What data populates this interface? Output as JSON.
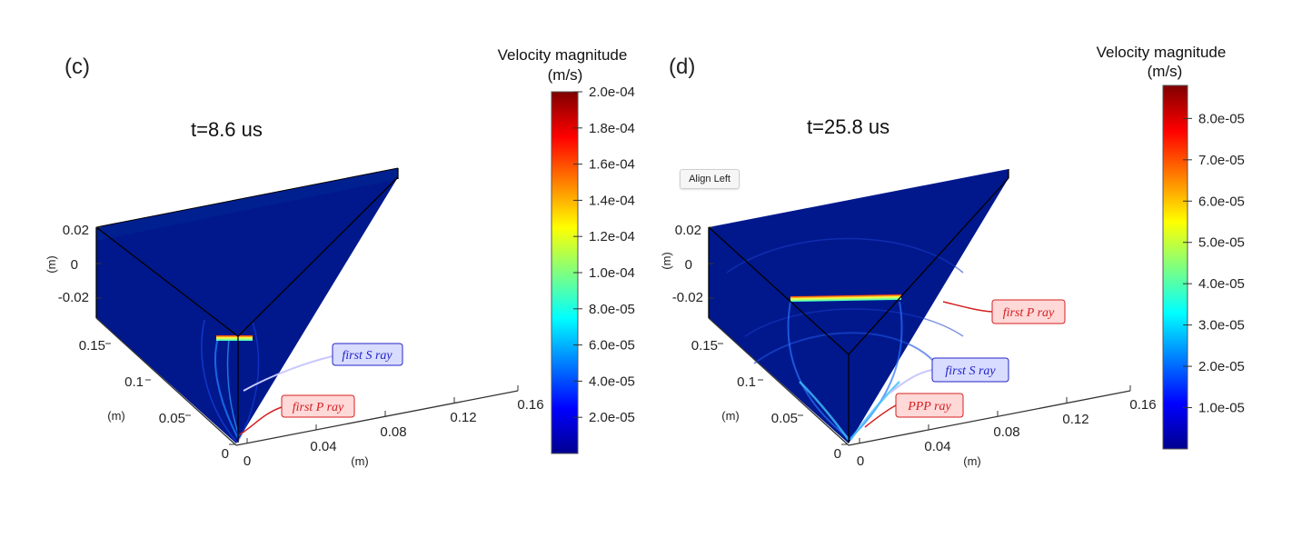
{
  "chart_data": [
    {
      "type": "heatmap",
      "panel_label": "(c)",
      "title": "t=8.6 us",
      "colorbar": {
        "title_line1": "Velocity magnitude",
        "title_line2": "(m/s)",
        "colormap": "jet",
        "range": [
          0,
          0.0002
        ],
        "ticks": [
          "2.0e-04",
          "1.8e-04",
          "1.6e-04",
          "1.4e-04",
          "1.2e-04",
          "1.0e-04",
          "8.0e-05",
          "6.0e-05",
          "4.0e-05",
          "2.0e-05"
        ]
      },
      "axes": {
        "z_ticks": [
          "0.02",
          "0",
          "-0.02"
        ],
        "y_ticks": [
          "0.15",
          "0.1",
          "0.05",
          "0"
        ],
        "x_ticks": [
          "0",
          "0.04",
          "0.08",
          "0.12",
          "0.16"
        ],
        "z_unit": "(m)",
        "y_unit": "(m)",
        "x_unit": "(m)"
      },
      "annotations": [
        {
          "text": "first S ray",
          "color": "blue"
        },
        {
          "text": "first P ray",
          "color": "red"
        }
      ]
    },
    {
      "type": "heatmap",
      "panel_label": "(d)",
      "title": "t=25.8 us",
      "colorbar": {
        "title_line1": "Velocity magnitude",
        "title_line2": "(m/s)",
        "colormap": "jet",
        "range": [
          0,
          8.8e-05
        ],
        "ticks": [
          "8.0e-05",
          "7.0e-05",
          "6.0e-05",
          "5.0e-05",
          "4.0e-05",
          "3.0e-05",
          "2.0e-05",
          "1.0e-05"
        ]
      },
      "axes": {
        "z_ticks": [
          "0.02",
          "0",
          "-0.02"
        ],
        "y_ticks": [
          "0.15",
          "0.1",
          "0.05",
          "0"
        ],
        "x_ticks": [
          "0",
          "0.04",
          "0.08",
          "0.12",
          "0.16"
        ],
        "z_unit": "(m)",
        "y_unit": "(m)",
        "x_unit": "(m)"
      },
      "annotations": [
        {
          "text": "first P ray",
          "color": "red"
        },
        {
          "text": "first S ray",
          "color": "blue"
        },
        {
          "text": "PPP ray",
          "color": "red"
        }
      ]
    }
  ],
  "tooltip": {
    "label": "Align Left"
  },
  "colors": {
    "field": "#00188c",
    "edge": "#000000",
    "red_anno": "#d42020",
    "blue_anno": "#2424c8"
  }
}
